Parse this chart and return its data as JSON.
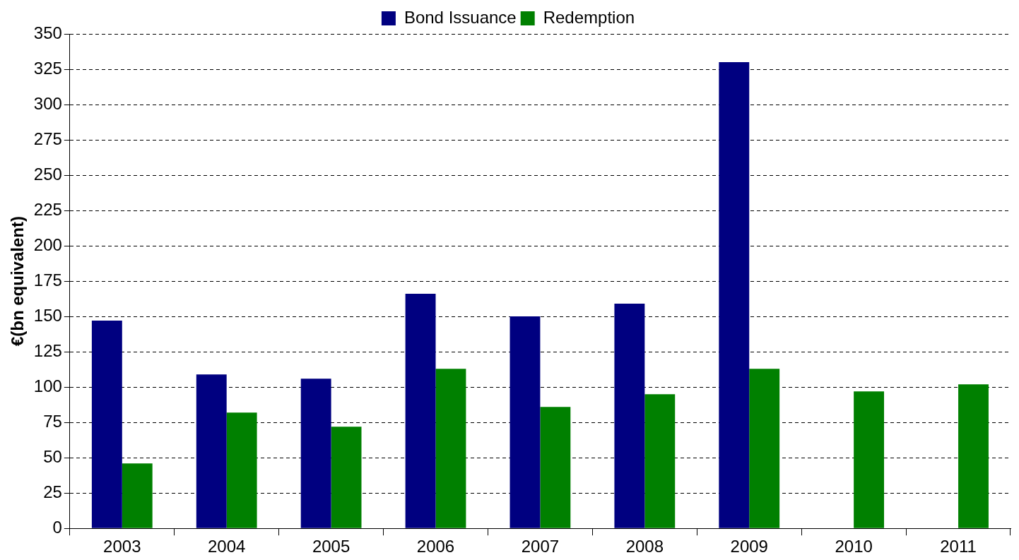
{
  "chart_data": {
    "type": "bar",
    "ylabel": "€(bn equivalent)",
    "categories": [
      "2003",
      "2004",
      "2005",
      "2006",
      "2007",
      "2008",
      "2009",
      "2010",
      "2011"
    ],
    "series": [
      {
        "name": "Bond Issuance",
        "color": "#000080",
        "values": [
          147,
          109,
          106,
          166,
          150,
          159,
          330,
          null,
          null
        ]
      },
      {
        "name": "Redemption",
        "color": "#008000",
        "values": [
          46,
          82,
          72,
          113,
          86,
          95,
          113,
          97,
          102
        ]
      }
    ],
    "ylim": [
      0,
      350
    ],
    "yticks": [
      0,
      25,
      50,
      75,
      100,
      125,
      150,
      175,
      200,
      225,
      250,
      275,
      300,
      325,
      350
    ],
    "grid": "y",
    "legend": "top"
  }
}
